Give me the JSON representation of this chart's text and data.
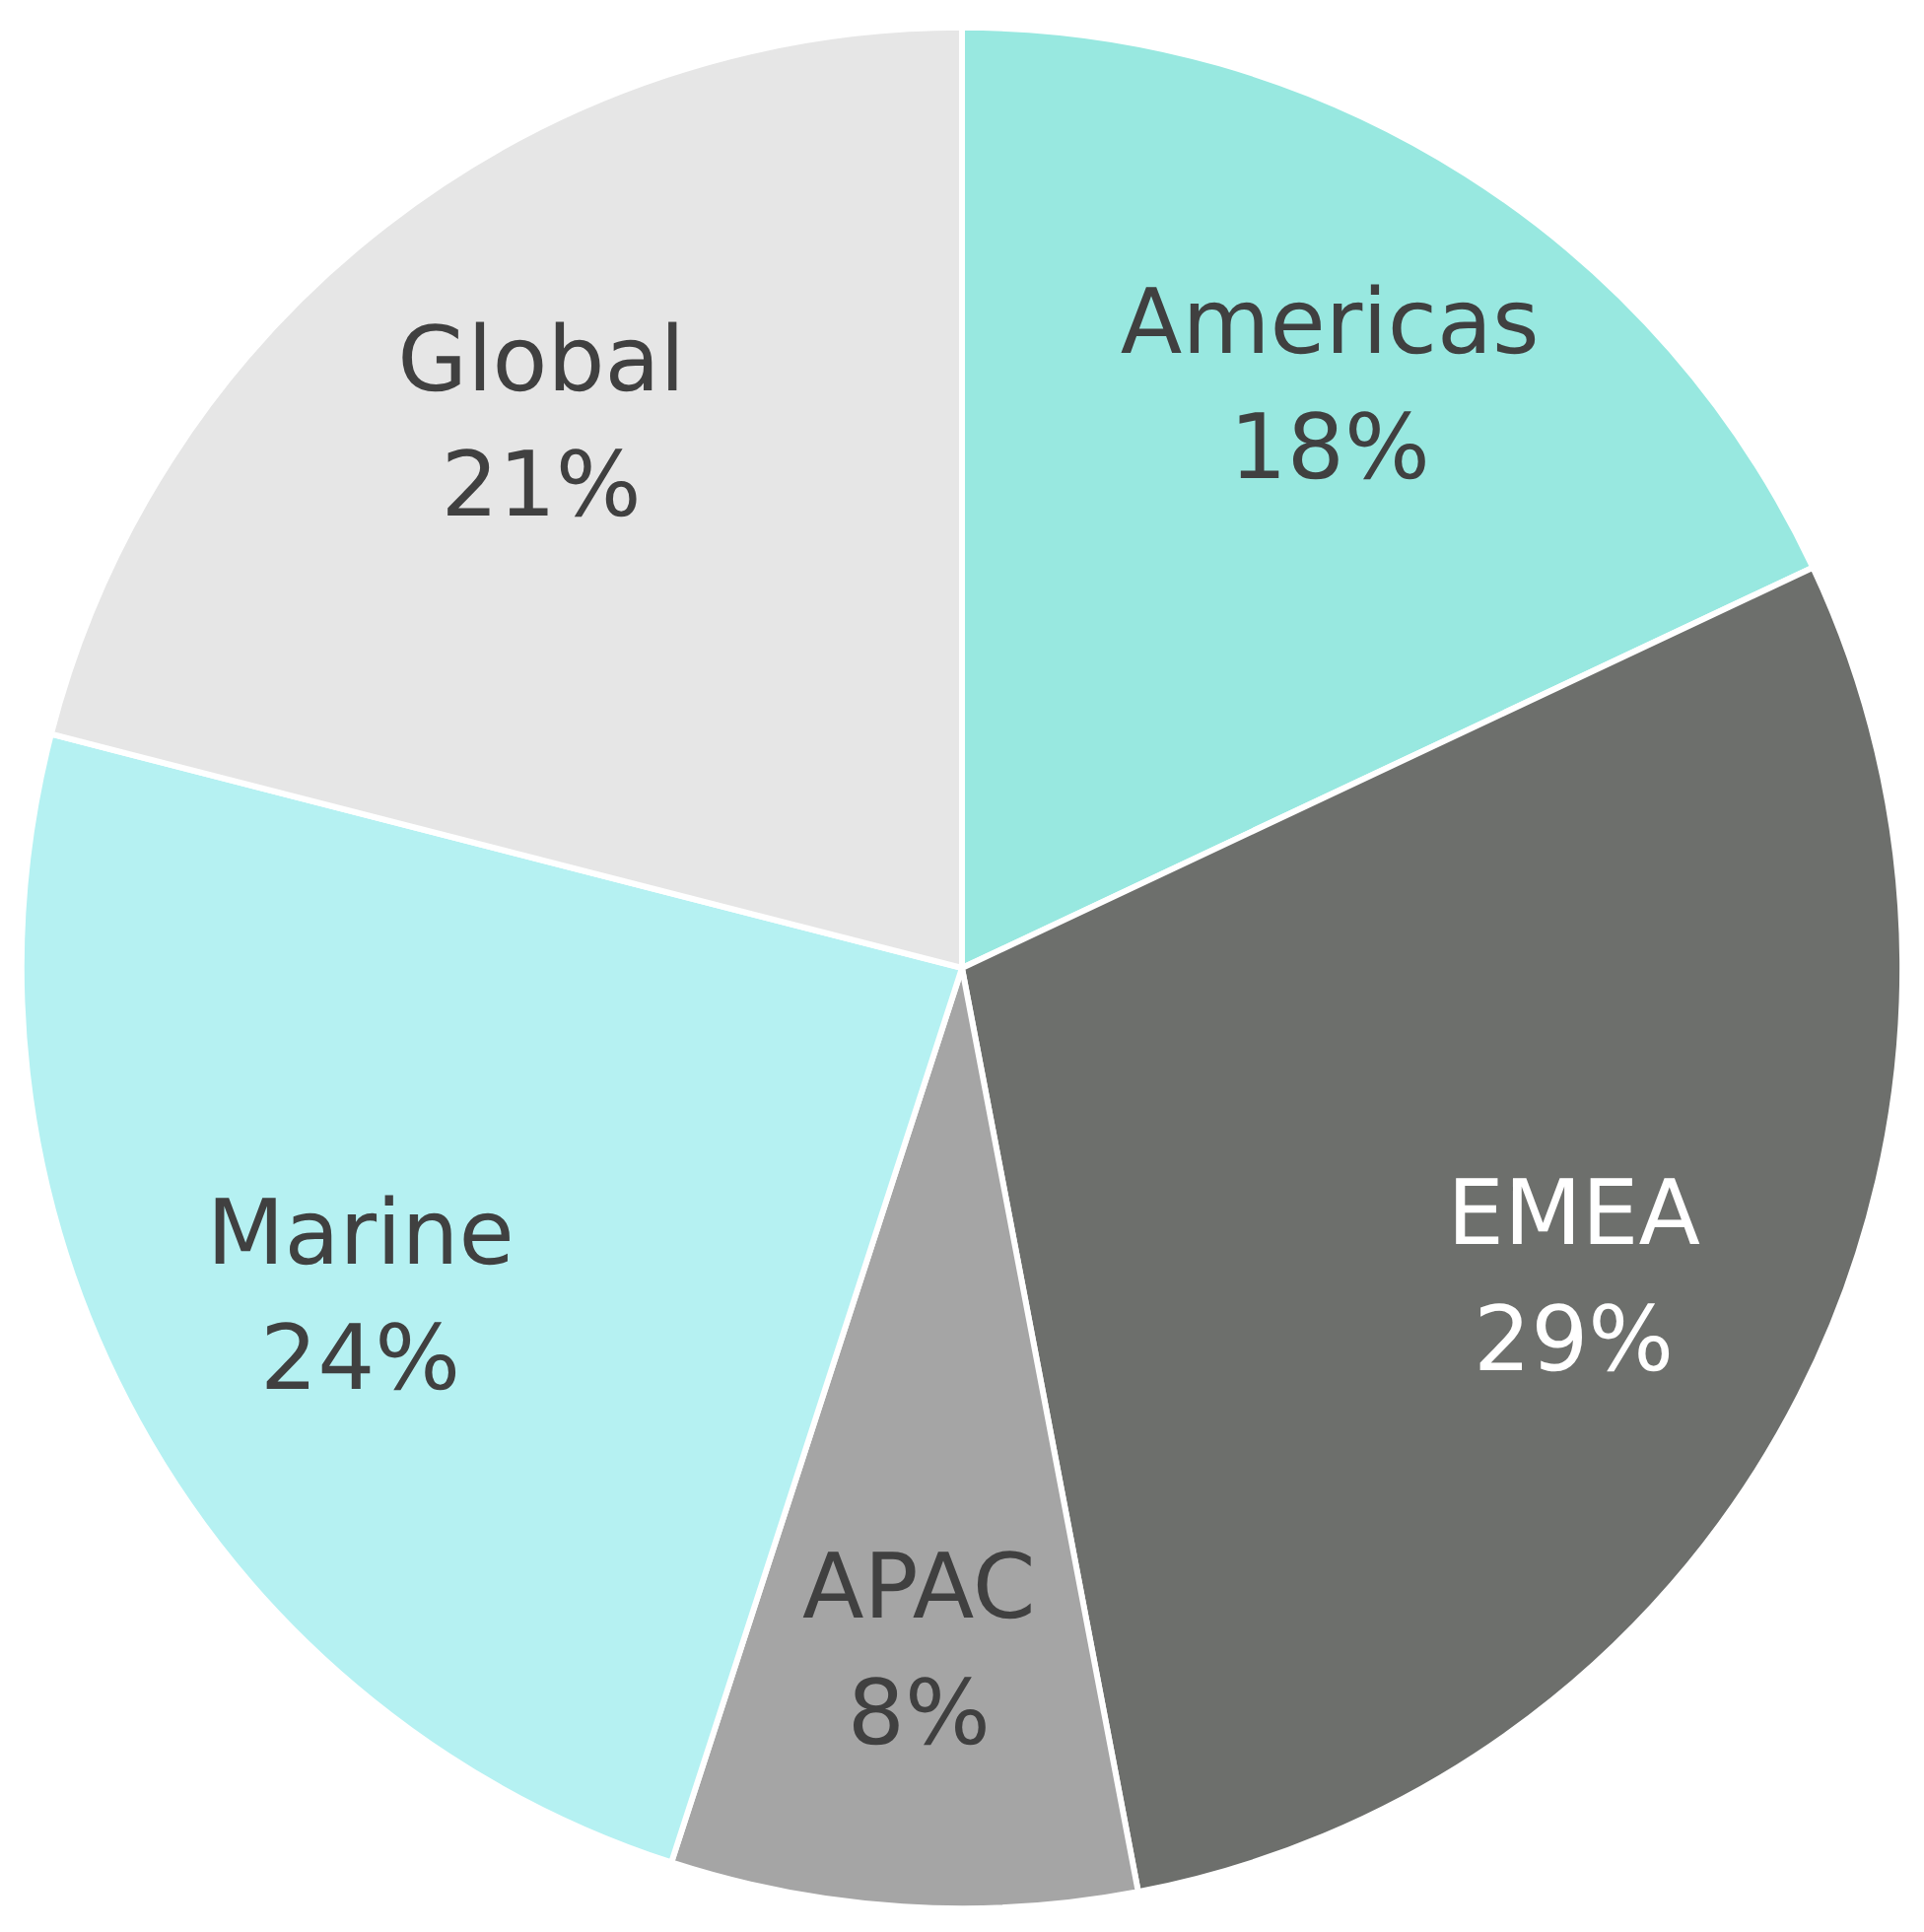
{
  "chart_data": {
    "type": "pie",
    "categories": [
      "Americas",
      "EMEA",
      "APAC",
      "Marine",
      "Global"
    ],
    "values": [
      18,
      29,
      8,
      24,
      21
    ],
    "value_labels": [
      "18%",
      "29%",
      "8%",
      "24%",
      "21%"
    ],
    "colors": [
      "#98e8e0",
      "#6d6f6c",
      "#a5a5a5",
      "#b5f1f2",
      "#e6e6e6"
    ],
    "legend": false
  }
}
